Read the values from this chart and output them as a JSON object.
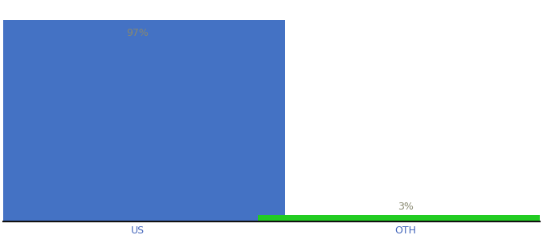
{
  "categories": [
    "US",
    "OTH"
  ],
  "values": [
    97,
    3
  ],
  "bar_colors": [
    "#4472c4",
    "#22cc22"
  ],
  "label_color": "#888870",
  "value_labels": [
    "97%",
    "3%"
  ],
  "background_color": "#ffffff",
  "ylim": [
    0,
    105
  ],
  "bar_width": 0.55,
  "label_fontsize": 9,
  "tick_fontsize": 9,
  "tick_label_color": "#4466bb",
  "spine_color": "#111111"
}
